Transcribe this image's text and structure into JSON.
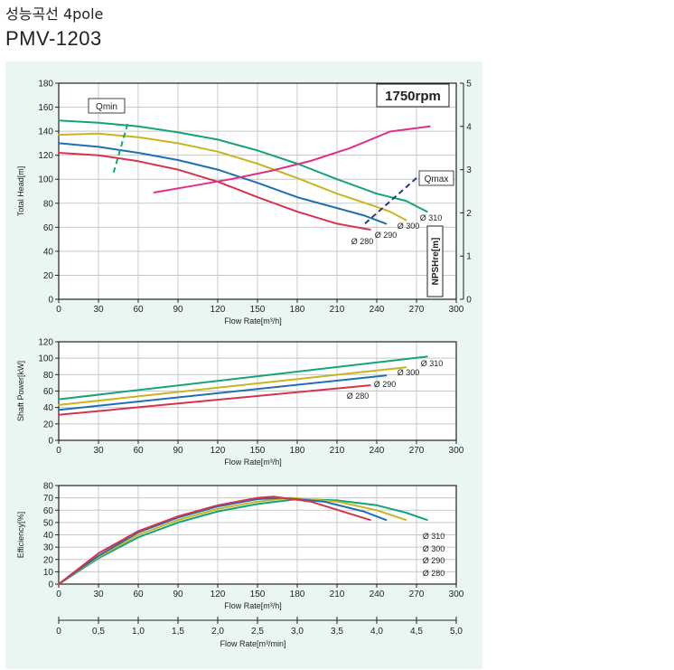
{
  "header": {
    "subtitle": "성능곡선 4pole",
    "model": "PMV-1203"
  },
  "colors": {
    "d310": "#14a37a",
    "d300": "#c9b422",
    "d290": "#1f6fb5",
    "d280": "#d6334f",
    "npshr": "#e0308a",
    "panel": "#eaf6f1",
    "grid": "#c8c8c8"
  },
  "chart_data": [
    {
      "type": "line",
      "id": "head",
      "xlabel": "Flow Rate[m³/h]",
      "ylabel": "Total Head[m]",
      "y2label": "NPSHre[m]",
      "badge": "1750rpm",
      "xlim": [
        0,
        300
      ],
      "ylim": [
        0,
        180
      ],
      "y2lim": [
        0,
        5
      ],
      "xticks": [
        "0",
        "30",
        "60",
        "90",
        "120",
        "150",
        "180",
        "210",
        "240",
        "270",
        "300"
      ],
      "yticks": [
        "0",
        "20",
        "40",
        "60",
        "80",
        "100",
        "120",
        "140",
        "160",
        "180"
      ],
      "y2ticks": [
        "0",
        "1",
        "2",
        "3",
        "4",
        "5"
      ],
      "series": [
        {
          "name": "Ø 310",
          "color": "#14a37a",
          "x": [
            0,
            30,
            60,
            90,
            120,
            150,
            180,
            210,
            240,
            262,
            278
          ],
          "y": [
            149,
            147,
            144,
            139,
            133,
            124,
            113,
            100,
            88,
            82,
            73
          ]
        },
        {
          "name": "Ø 300",
          "color": "#c9b422",
          "x": [
            0,
            30,
            60,
            90,
            120,
            150,
            180,
            210,
            240,
            250,
            262
          ],
          "y": [
            137,
            138,
            135,
            130,
            123,
            113,
            101,
            88,
            77,
            73,
            66
          ]
        },
        {
          "name": "Ø 290",
          "color": "#1f6fb5",
          "x": [
            0,
            30,
            60,
            90,
            120,
            150,
            180,
            210,
            230,
            247
          ],
          "y": [
            130,
            127,
            122,
            116,
            108,
            97,
            85,
            76,
            70,
            63
          ]
        },
        {
          "name": "Ø 280",
          "color": "#d6334f",
          "x": [
            0,
            30,
            60,
            90,
            120,
            150,
            180,
            210,
            235
          ],
          "y": [
            122,
            120,
            115,
            108,
            98,
            85,
            73,
            63,
            58
          ]
        }
      ],
      "npshr": {
        "color": "#e0308a",
        "axis": "right",
        "x": [
          72,
          100,
          130,
          160,
          190,
          220,
          250,
          280
        ],
        "y": [
          2.47,
          2.62,
          2.78,
          2.97,
          3.2,
          3.5,
          3.88,
          4.0
        ]
      },
      "annotations": [
        {
          "text": "Qmin",
          "x": [
            52,
            41
          ],
          "y": [
            146,
            104
          ]
        },
        {
          "text": "Qmax",
          "x": [
            270,
            230
          ],
          "y": [
            101,
            62
          ]
        }
      ],
      "end_labels": [
        "Ø 310",
        "Ø 300",
        "Ø 290",
        "Ø 280"
      ]
    },
    {
      "type": "line",
      "id": "power",
      "xlabel": "Flow Rate[m³/h]",
      "ylabel": "Shaft Power[kW]",
      "xlim": [
        0,
        300
      ],
      "ylim": [
        0,
        120
      ],
      "xticks": [
        "0",
        "30",
        "60",
        "90",
        "120",
        "150",
        "180",
        "210",
        "240",
        "270",
        "300"
      ],
      "yticks": [
        "0",
        "20",
        "40",
        "60",
        "80",
        "100",
        "120"
      ],
      "series": [
        {
          "name": "Ø 310",
          "color": "#14a37a",
          "x": [
            0,
            278
          ],
          "y": [
            50,
            102
          ]
        },
        {
          "name": "Ø 300",
          "color": "#c9b422",
          "x": [
            0,
            262
          ],
          "y": [
            43,
            89
          ]
        },
        {
          "name": "Ø 290",
          "color": "#1f6fb5",
          "x": [
            0,
            247
          ],
          "y": [
            37,
            79
          ]
        },
        {
          "name": "Ø 280",
          "color": "#d6334f",
          "x": [
            0,
            235
          ],
          "y": [
            31,
            67
          ]
        }
      ],
      "end_labels": [
        "Ø 310",
        "Ø 300",
        "Ø 290",
        "Ø 280"
      ]
    },
    {
      "type": "line",
      "id": "efficiency",
      "xlabel": "Flow Rate[m³/h]",
      "x2label": "Flow Rate[m³/min]",
      "ylabel": "Efficiency[%]",
      "xlim": [
        0,
        300
      ],
      "ylim": [
        0,
        80
      ],
      "x2lim": [
        0,
        5
      ],
      "xticks": [
        "0",
        "30",
        "60",
        "90",
        "120",
        "150",
        "180",
        "210",
        "240",
        "270",
        "300"
      ],
      "yticks": [
        "0",
        "10",
        "20",
        "30",
        "40",
        "50",
        "60",
        "70",
        "80"
      ],
      "x2ticks": [
        "0",
        "0,5",
        "1,0",
        "1,5",
        "2,0",
        "2,5",
        "3,0",
        "3,5",
        "4,0",
        "4,5",
        "5,0"
      ],
      "series": [
        {
          "name": "Ø 310",
          "color": "#14a37a",
          "x": [
            0,
            30,
            60,
            90,
            120,
            150,
            180,
            210,
            240,
            262,
            278
          ],
          "y": [
            0,
            21,
            38,
            50,
            59,
            65,
            69,
            68,
            64,
            58,
            52
          ]
        },
        {
          "name": "Ø 300",
          "color": "#c9b422",
          "x": [
            0,
            30,
            60,
            90,
            120,
            150,
            175,
            210,
            240,
            262
          ],
          "y": [
            0,
            22,
            40,
            52,
            61,
            67,
            70,
            67,
            60,
            52
          ]
        },
        {
          "name": "Ø 290",
          "color": "#1f6fb5",
          "x": [
            0,
            30,
            60,
            90,
            120,
            150,
            168,
            200,
            230,
            247
          ],
          "y": [
            0,
            23,
            42,
            54,
            63,
            69,
            70,
            67,
            59,
            52
          ]
        },
        {
          "name": "Ø 280",
          "color": "#d6334f",
          "x": [
            0,
            30,
            60,
            90,
            120,
            150,
            162,
            190,
            220,
            235
          ],
          "y": [
            0,
            25,
            43,
            55,
            64,
            70,
            71,
            67,
            57,
            52
          ]
        }
      ],
      "legend_labels": [
        "Ø 310",
        "Ø 300",
        "Ø 290",
        "Ø 280"
      ]
    }
  ]
}
